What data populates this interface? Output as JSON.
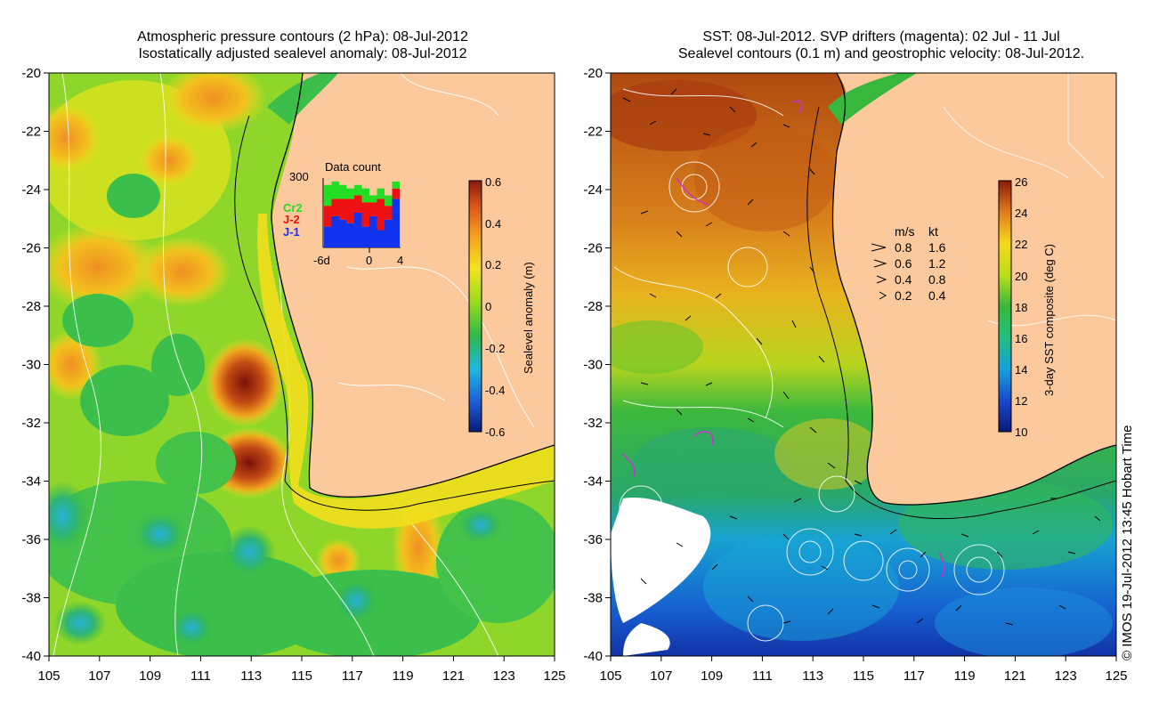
{
  "left_map": {
    "title_line1": "Atmospheric pressure contours (2 hPa): 08-Jul-2012",
    "title_line2": "Isostatically adjusted sealevel anomaly: 08-Jul-2012",
    "colorbar": {
      "label": "Sealevel anomaly (m)",
      "ticks": [
        "0.6",
        "0.4",
        "0.2",
        "0",
        "-0.2",
        "-0.4",
        "-0.6"
      ]
    },
    "data_count": {
      "title": "Data count",
      "max_label": "300",
      "legend": [
        {
          "label": "Cr2",
          "color": "#22dd22"
        },
        {
          "label": "J-2",
          "color": "#ee1111"
        },
        {
          "label": "J-1",
          "color": "#1133ee"
        }
      ],
      "axis_labels": [
        "-6d",
        "0",
        "4"
      ],
      "bars": [
        {
          "blue": 0.3,
          "red": 0.3,
          "green": 0.3
        },
        {
          "blue": 0.45,
          "red": 0.25,
          "green": 0.25
        },
        {
          "blue": 0.4,
          "red": 0.3,
          "green": 0.2
        },
        {
          "blue": 0.35,
          "red": 0.35,
          "green": 0.15
        },
        {
          "blue": 0.5,
          "red": 0.25,
          "green": 0.15
        },
        {
          "blue": 0.3,
          "red": 0.35,
          "green": 0.2
        },
        {
          "blue": 0.45,
          "red": 0.2,
          "green": 0.1
        },
        {
          "blue": 0.25,
          "red": 0.45,
          "green": 0.15
        },
        {
          "blue": 0.4,
          "red": 0.2,
          "green": 0.15
        },
        {
          "blue": 0.7,
          "red": 0.15,
          "green": 0.1
        }
      ]
    }
  },
  "right_map": {
    "title_line1": "SST: 08-Jul-2012. SVP drifters (magenta): 02 Jul - 11 Jul",
    "title_line2": "Sealevel contours (0.1 m) and geostrophic velocity: 08-Jul-2012.",
    "colorbar": {
      "label": "3-day SST composite (deg C)",
      "ticks": [
        "26",
        "24",
        "22",
        "20",
        "18",
        "16",
        "14",
        "12",
        "10"
      ]
    },
    "velocity_legend": {
      "header_ms": "m/s",
      "header_kt": "kt",
      "rows": [
        {
          "ms": "0.8",
          "kt": "1.6"
        },
        {
          "ms": "0.6",
          "kt": "1.2"
        },
        {
          "ms": "0.4",
          "kt": "0.8"
        },
        {
          "ms": "0.2",
          "kt": "0.4"
        }
      ]
    }
  },
  "axes": {
    "lat_ticks": [
      "-20",
      "-22",
      "-24",
      "-26",
      "-28",
      "-30",
      "-32",
      "-34",
      "-36",
      "-38",
      "-40"
    ],
    "lon_ticks": [
      "105",
      "107",
      "109",
      "111",
      "113",
      "115",
      "117",
      "119",
      "121",
      "123",
      "125"
    ]
  },
  "credit": "© IMOS 19-Jul-2012 13:45 Hobart Time",
  "colors": {
    "land": "#fbc99c",
    "sla_colormap": [
      "#0a1a7a",
      "#1e5fd6",
      "#1fb8e0",
      "#2db84a",
      "#9bdc1e",
      "#f5e41c",
      "#f5a020",
      "#d9551a",
      "#8a1a0a"
    ],
    "sst_colormap": [
      "#0a1a7a",
      "#1747c9",
      "#15a0dd",
      "#21c07a",
      "#37b83c",
      "#b9dc1c",
      "#f5d91a",
      "#e0781c",
      "#8a1a0a"
    ]
  }
}
